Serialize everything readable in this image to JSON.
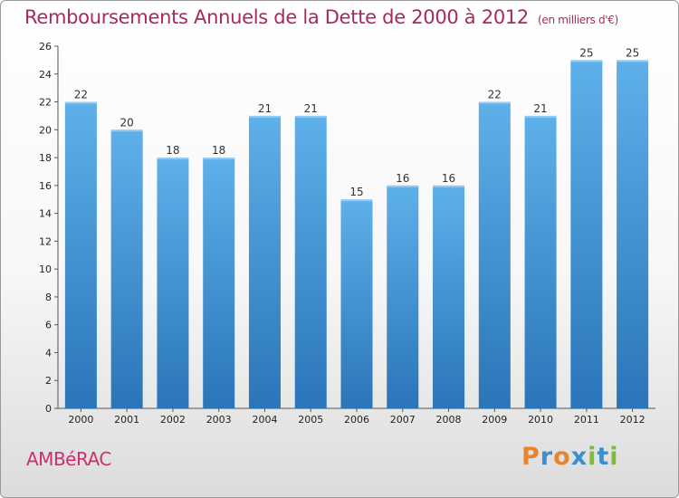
{
  "title": "Remboursements Annuels de la Dette de 2000 à 2012",
  "unit_note": "(en milliers d'€)",
  "commune": "AMBéRAC",
  "logo": {
    "text": "Proxiti",
    "colors": [
      "#e8852c",
      "#3a8fcf",
      "#e8852c",
      "#3a8fcf",
      "#7dbb3c",
      "#3a8fcf",
      "#7dbb3c"
    ]
  },
  "colors": {
    "bar_top": "#5eb0ea",
    "bar_bottom": "#2a75b8",
    "title": "#a8295f",
    "commune": "#cf2e6d"
  },
  "chart_data": {
    "type": "bar",
    "categories": [
      "2000",
      "2001",
      "2002",
      "2003",
      "2004",
      "2005",
      "2006",
      "2007",
      "2008",
      "2009",
      "2010",
      "2011",
      "2012"
    ],
    "values": [
      22,
      20,
      18,
      18,
      21,
      21,
      15,
      16,
      16,
      22,
      21,
      25,
      25
    ],
    "title": "Remboursements Annuels de la Dette de 2000 à 2012",
    "xlabel": "",
    "ylabel": "",
    "ylim": [
      0,
      26
    ],
    "yticks": [
      0,
      2,
      4,
      6,
      8,
      10,
      12,
      14,
      16,
      18,
      20,
      22,
      24,
      26
    ],
    "grid": false,
    "data_labels": true
  }
}
